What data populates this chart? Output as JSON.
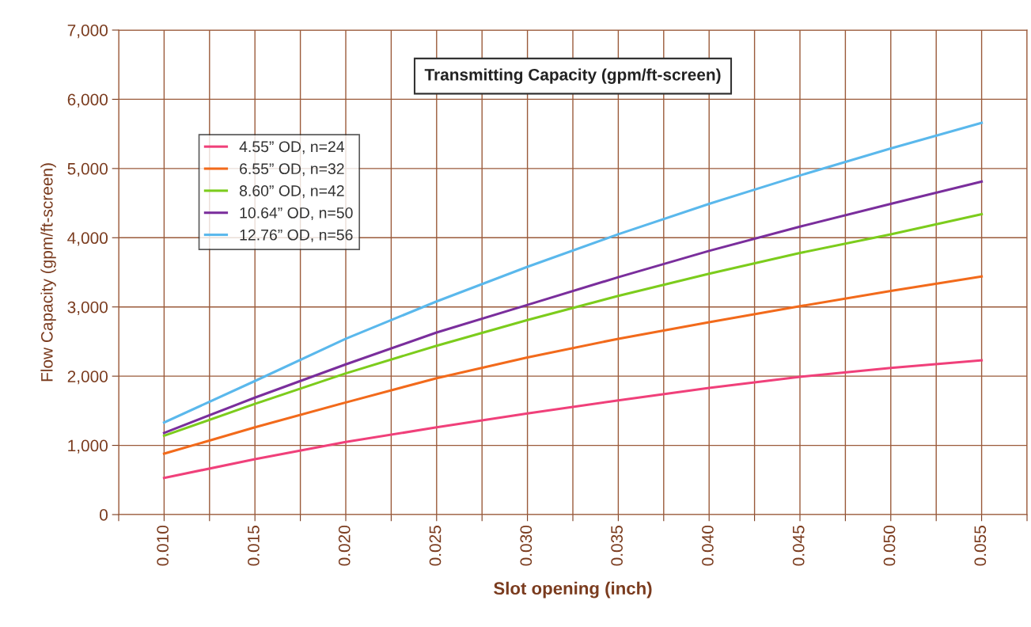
{
  "chart_data": {
    "type": "line",
    "title": "Transmitting Capacity (gpm/ft-screen)",
    "xlabel": "Slot opening (inch)",
    "ylabel": "Flow Capacity (gpm/ft-screen)",
    "x": [
      0.01,
      0.015,
      0.02,
      0.025,
      0.03,
      0.035,
      0.04,
      0.045,
      0.05,
      0.055
    ],
    "series": [
      {
        "name": "4.55” OD, n=24",
        "color": "#f0407a",
        "values": [
          530,
          800,
          1050,
          1260,
          1460,
          1650,
          1830,
          1990,
          2120,
          2230
        ]
      },
      {
        "name": "6.55” OD, n=32",
        "color": "#f26a1b",
        "values": [
          880,
          1260,
          1620,
          1970,
          2270,
          2540,
          2780,
          3010,
          3230,
          3440
        ]
      },
      {
        "name": "8.60” OD, n=42",
        "color": "#7ccc1c",
        "values": [
          1140,
          1600,
          2040,
          2440,
          2810,
          3160,
          3480,
          3780,
          4050,
          4340
        ]
      },
      {
        "name": "10.64” OD, n=50",
        "color": "#7a2e9c",
        "values": [
          1180,
          1690,
          2170,
          2630,
          3030,
          3430,
          3810,
          4160,
          4490,
          4810
        ]
      },
      {
        "name": "12.76” OD, n=56",
        "color": "#5ab8ec",
        "values": [
          1330,
          1930,
          2540,
          3080,
          3580,
          4050,
          4490,
          4900,
          5290,
          5660
        ]
      }
    ],
    "xlim": [
      0.0075,
      0.0575
    ],
    "xticks": [
      {
        "value": 0.0075,
        "label": null
      },
      {
        "value": 0.01,
        "label": "0.010"
      },
      {
        "value": 0.0125,
        "label": null
      },
      {
        "value": 0.015,
        "label": "0.015"
      },
      {
        "value": 0.0175,
        "label": null
      },
      {
        "value": 0.02,
        "label": "0.020"
      },
      {
        "value": 0.0225,
        "label": null
      },
      {
        "value": 0.025,
        "label": "0.025"
      },
      {
        "value": 0.0275,
        "label": null
      },
      {
        "value": 0.03,
        "label": "0.030"
      },
      {
        "value": 0.0325,
        "label": null
      },
      {
        "value": 0.035,
        "label": "0.035"
      },
      {
        "value": 0.0375,
        "label": null
      },
      {
        "value": 0.04,
        "label": "0.040"
      },
      {
        "value": 0.0425,
        "label": null
      },
      {
        "value": 0.045,
        "label": "0.045"
      },
      {
        "value": 0.0475,
        "label": null
      },
      {
        "value": 0.05,
        "label": "0.050"
      },
      {
        "value": 0.0525,
        "label": null
      },
      {
        "value": 0.055,
        "label": "0.055"
      },
      {
        "value": 0.0575,
        "label": null
      }
    ],
    "ylim": [
      0,
      7000
    ],
    "yticks": [
      {
        "value": 0,
        "label": "0"
      },
      {
        "value": 1000,
        "label": "1,000"
      },
      {
        "value": 2000,
        "label": "2,000"
      },
      {
        "value": 3000,
        "label": "3,000"
      },
      {
        "value": 4000,
        "label": "4,000"
      },
      {
        "value": 5000,
        "label": "5,000"
      },
      {
        "value": 6000,
        "label": "6,000"
      },
      {
        "value": 7000,
        "label": "7,000"
      }
    ],
    "grid": true,
    "legend": "top left",
    "marker": "none",
    "line_style": "solid"
  }
}
